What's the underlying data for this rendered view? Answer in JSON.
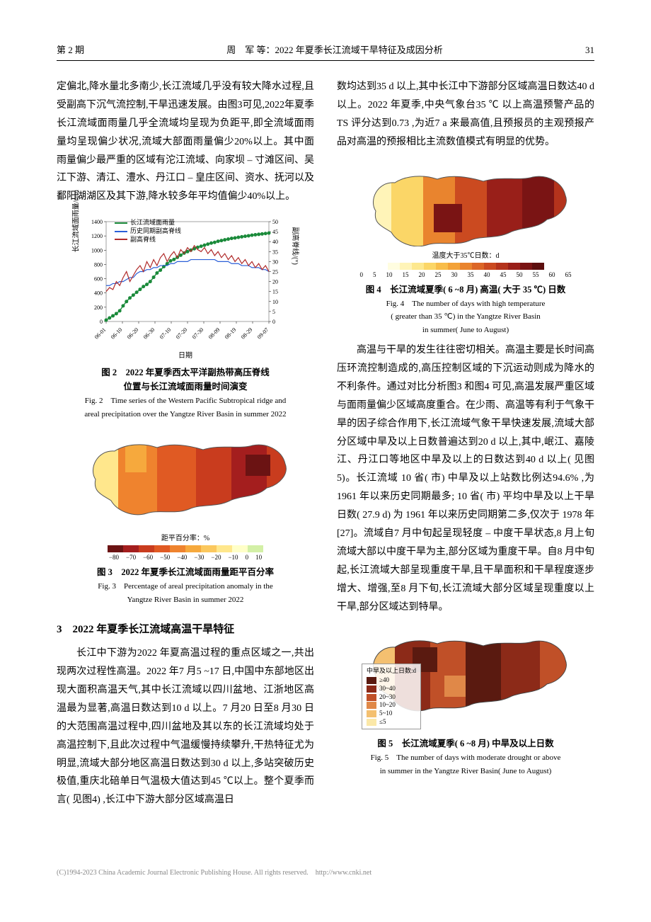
{
  "header": {
    "issue": "第 2 期",
    "title": "周　军 等：2022 年夏季长江流域干旱特征及成因分析",
    "page": "31"
  },
  "left_col": {
    "para1": "定偏北,降水量北多南少,长江流域几乎没有较大降水过程,且受副高下沉气流控制,干旱迅速发展。由图3可见,2022年夏季长江流域面雨量几乎全流域均呈现为负距平,即全流域面雨量均呈现偏少状况,流域大部面雨量偏少20%以上。其中面雨量偏少最严重的区域有沱江流域、向家坝 – 寸滩区间、吴江下游、清江、澧水、丹江口 – 皇庄区间、资水、抚河以及鄱阳湖湖区及其下游,降水较多年平均值偏少40%以上。",
    "fig2": {
      "caption_cn": "图 2　2022 年夏季西太平洋副热带高压脊线\n位置与长江流域面雨量时间演变",
      "caption_en_l1": "Fig. 2　Time series of the Western Pacific Subtropical ridge and",
      "caption_en_l2": "areal precipitation over the Yangtze River Basin in summer 2022",
      "chart": {
        "type": "line",
        "y1_label": "长江流域面雨量/mm",
        "y2_label": "副高脊线/(°)",
        "x_label": "日期",
        "y1_range": [
          0,
          1400
        ],
        "y1_ticks": [
          0,
          200,
          400,
          600,
          800,
          1000,
          1200,
          1400
        ],
        "y2_range": [
          0,
          50
        ],
        "y2_ticks": [
          0,
          5,
          10,
          15,
          20,
          25,
          30,
          35,
          40,
          45,
          50
        ],
        "x_ticks": [
          "06-01",
          "06-10",
          "06-20",
          "06-30",
          "07-10",
          "07-20",
          "07-30",
          "08-09",
          "08-19",
          "08-29",
          "09-07"
        ],
        "legends": [
          "长江流域面雨量",
          "历史同期副高脊线",
          "副高脊线"
        ],
        "colors": {
          "rain_line": "#1a8a3a",
          "rain_marker": "#1a8a3a",
          "hist_ridge": "#2a5fd8",
          "ridge": "#b02a2a",
          "background": "#ffffff",
          "grid": "#e0e0e0"
        },
        "line_widths": {
          "rain": 1.4,
          "hist_ridge": 1.2,
          "ridge": 1.2
        },
        "marker": {
          "type": "circle",
          "size": 2.5
        },
        "series_rain": [
          20,
          50,
          80,
          110,
          150,
          220,
          280,
          330,
          370,
          410,
          450,
          490,
          520,
          560,
          620,
          680,
          720,
          770,
          810,
          850,
          870,
          900,
          930,
          960,
          980,
          1000,
          1020,
          1040,
          1055,
          1070,
          1085,
          1100,
          1110,
          1125,
          1135,
          1145,
          1155,
          1165,
          1172,
          1180,
          1188,
          1195,
          1202,
          1210,
          1216,
          1222,
          1228,
          1234,
          1240
        ],
        "series_hist_ridge": [
          18,
          18,
          19,
          19,
          20,
          20,
          21,
          22,
          22,
          24,
          25,
          25,
          26,
          26,
          27,
          27,
          28,
          28,
          28,
          29,
          29,
          30,
          30,
          30,
          30,
          31,
          31,
          31,
          31,
          31,
          31,
          31,
          31,
          30,
          30,
          30,
          30,
          29,
          29,
          29,
          28,
          28,
          28,
          27,
          27,
          27,
          26,
          26,
          25
        ],
        "series_ridge": [
          15,
          17,
          16,
          20,
          18,
          22,
          25,
          20,
          23,
          26,
          28,
          25,
          30,
          27,
          31,
          28,
          32,
          34,
          30,
          33,
          35,
          32,
          36,
          34,
          37,
          35,
          38,
          36,
          35,
          37,
          34,
          36,
          33,
          35,
          32,
          34,
          31,
          33,
          30,
          32,
          29,
          31,
          28,
          30,
          27,
          29,
          26,
          28,
          25
        ]
      }
    },
    "fig3": {
      "caption_cn": "图 3　2022 年夏季长江流域面雨量距平百分率",
      "caption_en_l1": "Fig. 3　Percentage of areal precipitation anomaly in the",
      "caption_en_l2": "Yangtze River Basin in summer 2022",
      "scale_label": "距平百分率：%",
      "scale_values": [
        "−80",
        "−70",
        "−60",
        "−50",
        "−40",
        "−30",
        "−20",
        "−10",
        "0",
        "10"
      ],
      "colors": [
        "#6b1313",
        "#a41e1e",
        "#c93c1e",
        "#e05a23",
        "#ef832e",
        "#f6a93d",
        "#fbc85e",
        "#ffe78c",
        "#ffffc8",
        "#d3f0a6"
      ]
    },
    "section3_title": "3　2022 年夏季长江流域高温干旱特征",
    "para2": "长江中下游为2022 年夏高温过程的重点区域之一,共出现两次过程性高温。2022 年7 月5 ~17 日,中国中东部地区出现大面积高温天气,其中长江流域以四川盆地、江浙地区高温最为显著,高温日数达到10 d 以上。7 月20 日至8 月30 日的大范围高温过程中,四川盆地及其以东的长江流域均处于高温控制下,且此次过程中气温缓慢持续攀升,干热特征尤为明显,流域大部分地区高温日数达到30 d 以上,多站突破历史极值,重庆北碚单日气温极大值达到45 ℃以上。整个夏季而言( 见图4) ,长江中下游大部分区域高温日"
  },
  "right_col": {
    "para1": "数均达到35 d 以上,其中长江中下游部分区域高温日数达40 d 以上。2022 年夏季,中央气象台35 ℃ 以上高温预警产品的 TS 评分达到0.73 ,为近7 a 来最高值,且预报员的主观预报产品对高温的预报相比主流数值模式有明显的优势。",
    "fig4": {
      "caption_cn": "图 4　长江流域夏季( 6 ~8 月) 高温( 大于 35 ℃) 日数",
      "caption_en_l1": "Fig. 4　The number of days with high temperature",
      "caption_en_l2": "( greater than 35 ℃) in the Yangtze River Basin",
      "caption_en_l3": "in summer( June to August)",
      "scale_label": "温度大于35℃日数：d",
      "scale_values": [
        "0",
        "5",
        "10",
        "15",
        "20",
        "25",
        "30",
        "35",
        "40",
        "45",
        "50",
        "55",
        "60",
        "65"
      ],
      "colors": [
        "#fffde0",
        "#fff4b8",
        "#fde88e",
        "#fbd667",
        "#f8bd4a",
        "#f3a238",
        "#e9842e",
        "#dc6626",
        "#cb4a20",
        "#b4331c",
        "#991f19",
        "#7a1414",
        "#5c0e0e"
      ]
    },
    "para2": "高温与干旱的发生往往密切相关。高温主要是长时间高压环流控制造成的,高压控制区域的下沉运动则成为降水的不利条件。通过对比分析图3 和图4 可见,高温发展严重区域与面雨量偏少区域高度重合。在少雨、高温等有利于气象干旱的因子综合作用下,长江流域气象干旱快速发展,流域大部分区域中旱及以上日数普遍达到20 d 以上,其中,岷江、嘉陵江、丹江口等地区中旱及以上的日数达到40 d 以上( 见图5)。长江流域 10 省( 市) 中旱及以上站数比例达94.6% ,为1961 年以来历史同期最多; 10 省( 市) 平均中旱及以上干旱日数( 27.9 d) 为 1961 年以来历史同期第二多,仅次于 1978 年[27]。流域自7 月中旬起呈现轻度 – 中度干旱状态,8 月上旬流域大部以中度干旱为主,部分区域为重度干旱。自8 月中旬起,长江流域大部呈现重度干旱,且干旱面积和干旱程度逐步增大、增强,至8 月下旬,长江流域大部分区域呈现重度以上干旱,部分区域达到特旱。",
    "fig5": {
      "caption_cn": "图 5　长江流域夏季( 6 ~8 月) 中旱及以上日数",
      "caption_en_l1": "Fig. 5　The number of days with moderate drought or above",
      "caption_en_l2": "in summer in the Yangtze River Basin( June to August)",
      "legend_title": "中旱及以上日数:d",
      "legend_items": [
        {
          "label": "≥40",
          "color": "#5a1a10"
        },
        {
          "label": "30~40",
          "color": "#8c2a18"
        },
        {
          "label": "20~30",
          "color": "#c05028"
        },
        {
          "label": "10~20",
          "color": "#e08848"
        },
        {
          "label": "5~10",
          "color": "#f4c070"
        },
        {
          "label": "≤5",
          "color": "#fbe8a8"
        }
      ]
    }
  },
  "footer": "(C)1994-2023 China Academic Journal Electronic Publishing House. All rights reserved.　http://www.cnki.net"
}
